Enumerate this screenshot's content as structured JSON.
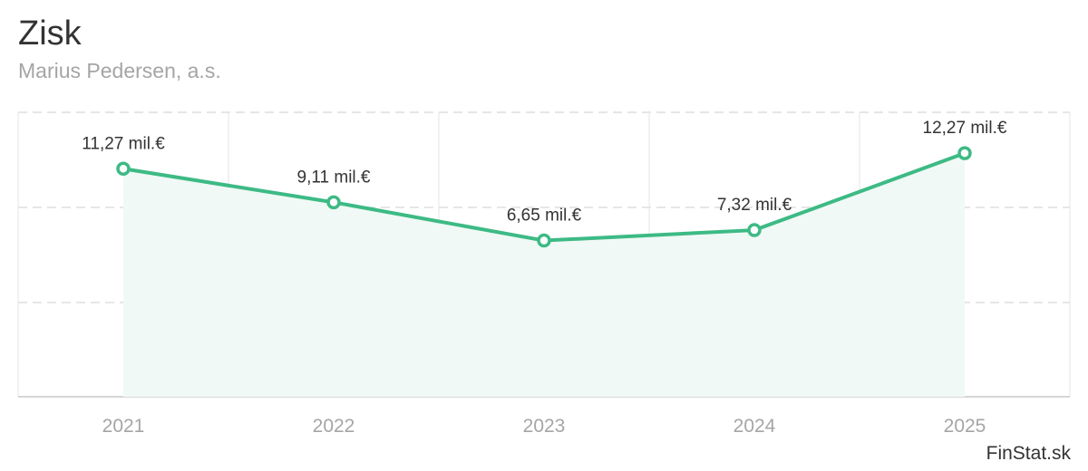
{
  "chart_data": {
    "type": "area",
    "title": "Zisk",
    "subtitle": "Marius Pedersen, a.s.",
    "categories": [
      "2021",
      "2022",
      "2023",
      "2024",
      "2025"
    ],
    "series": [
      {
        "values": [
          11.27,
          9.11,
          6.65,
          7.32,
          12.27
        ],
        "labels": [
          "11,27 mil.€",
          "9,11 mil.€",
          "6,65 mil.€",
          "7,32 mil.€",
          "12,27 mil.€"
        ]
      }
    ],
    "ylim": [
      -3.4,
      14.9
    ],
    "grid": true,
    "legend": "none",
    "colors": {
      "line": "#3dba85",
      "fill": "#f0f9f5",
      "grid": "#e6e6e6"
    }
  },
  "credit": "FinStat.sk"
}
